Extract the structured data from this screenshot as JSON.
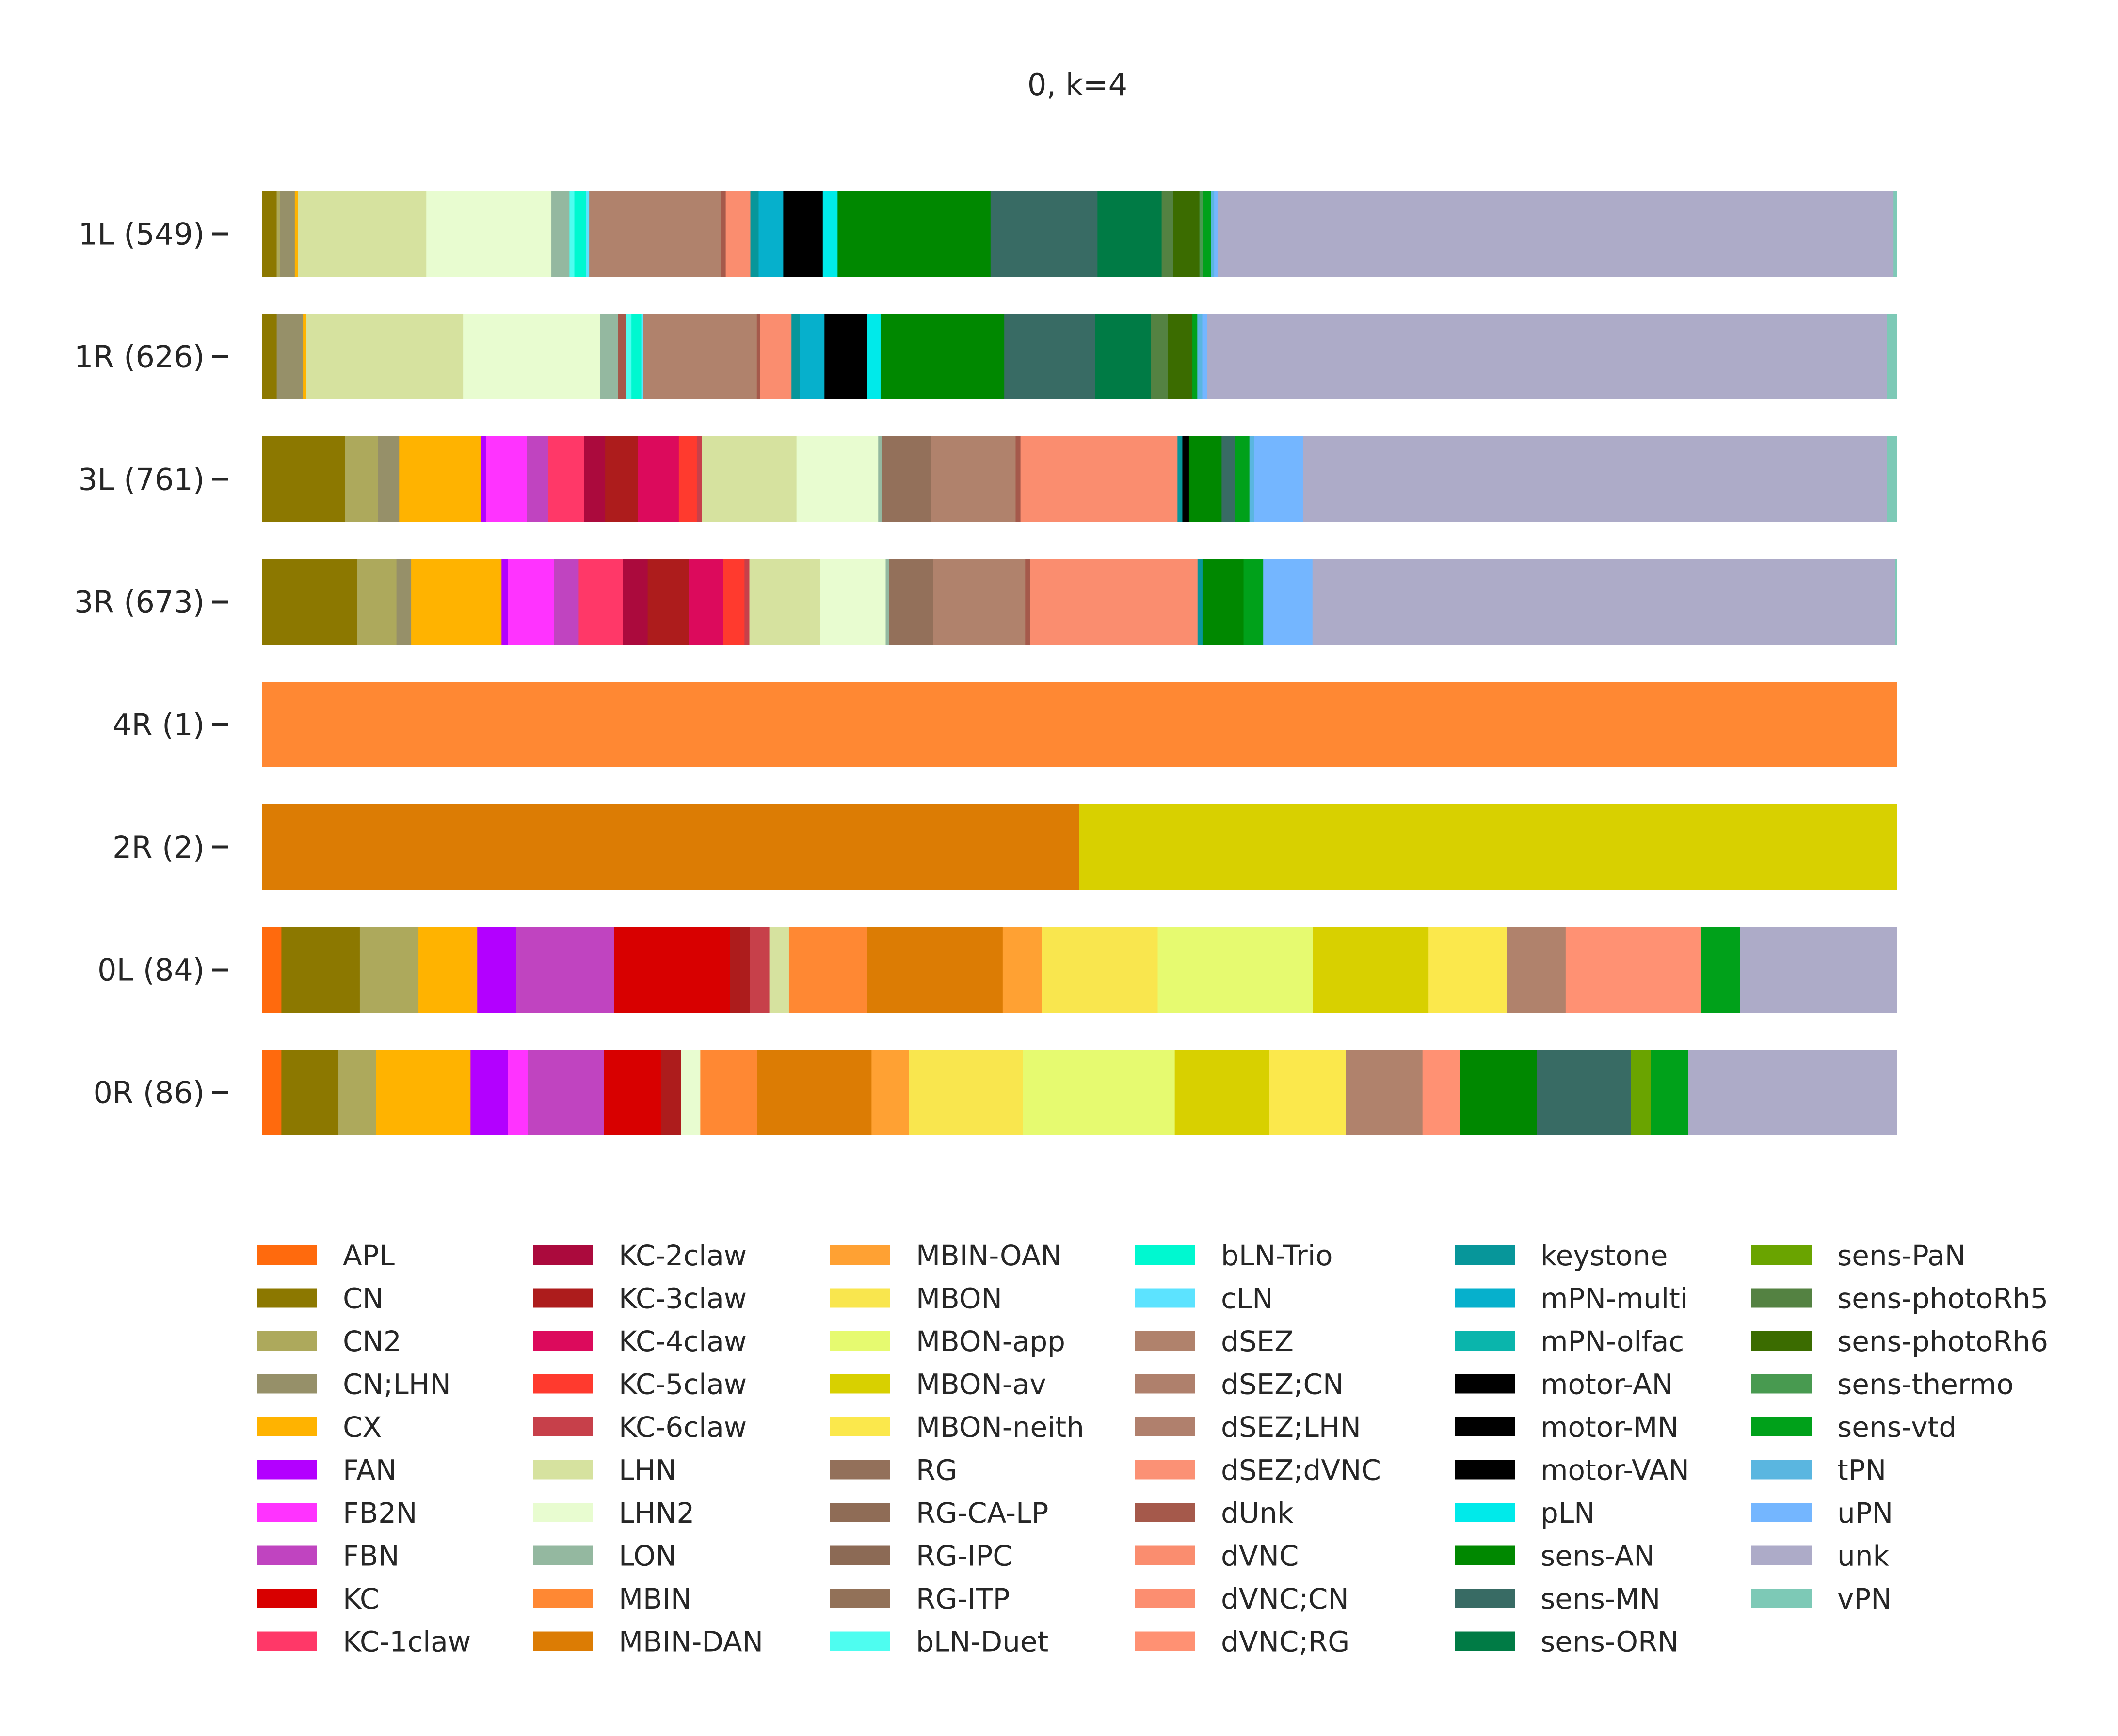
{
  "chart_data": {
    "type": "bar",
    "orientation": "horizontal",
    "stacked": true,
    "normalized": true,
    "title": "0, k=4",
    "xlabel": "",
    "ylabel": "",
    "xlim": [
      0,
      1
    ],
    "grid": false,
    "legend_position": "bottom",
    "rows": [
      {
        "label": "1L (549)",
        "segments": [
          [
            "CN",
            0.009
          ],
          [
            "CN2",
            0.002
          ],
          [
            "CN;LHN",
            0.009
          ],
          [
            "CX",
            0.002
          ],
          [
            "LHN",
            0.078
          ],
          [
            "LHN2",
            0.076
          ],
          [
            "LON",
            0.011
          ],
          [
            "bLN-Duet",
            0.003
          ],
          [
            "bLN-Trio",
            0.007
          ],
          [
            "cLN",
            0.002
          ],
          [
            "dSEZ",
            0.08
          ],
          [
            "dUnk",
            0.003
          ],
          [
            "dVNC",
            0.015
          ],
          [
            "keystone",
            0.005
          ],
          [
            "mPN-multi",
            0.015
          ],
          [
            "motor-AN",
            0.024
          ],
          [
            "pLN",
            0.009
          ],
          [
            "sens-AN",
            0.093
          ],
          [
            "sens-MN",
            0.065
          ],
          [
            "sens-ORN",
            0.039
          ],
          [
            "sens-photoRh5",
            0.007
          ],
          [
            "sens-photoRh6",
            0.016
          ],
          [
            "sens-thermo",
            0.002
          ],
          [
            "sens-vtd",
            0.005
          ],
          [
            "tPN",
            0.002
          ],
          [
            "uPN",
            0.002
          ],
          [
            "unk",
            0.411
          ],
          [
            "vPN",
            0.002
          ]
        ]
      },
      {
        "label": "1R (626)",
        "segments": [
          [
            "CN",
            0.009
          ],
          [
            "CN;LHN",
            0.016
          ],
          [
            "CX",
            0.002
          ],
          [
            "LHN",
            0.095
          ],
          [
            "LHN2",
            0.083
          ],
          [
            "LON",
            0.011
          ],
          [
            "dUnk",
            0.005
          ],
          [
            "bLN-Duet",
            0.003
          ],
          [
            "bLN-Trio",
            0.006
          ],
          [
            "cLN",
            0.001
          ],
          [
            "dSEZ",
            0.069
          ],
          [
            "dUnk",
            0.002
          ],
          [
            "dVNC",
            0.019
          ],
          [
            "keystone",
            0.005
          ],
          [
            "mPN-multi",
            0.015
          ],
          [
            "motor-AN",
            0.026
          ],
          [
            "pLN",
            0.008
          ],
          [
            "sens-AN",
            0.075
          ],
          [
            "sens-MN",
            0.055
          ],
          [
            "sens-ORN",
            0.034
          ],
          [
            "sens-photoRh5",
            0.01
          ],
          [
            "sens-photoRh6",
            0.015
          ],
          [
            "sens-vtd",
            0.003
          ],
          [
            "tPN",
            0.003
          ],
          [
            "uPN",
            0.003
          ],
          [
            "unk",
            0.412
          ],
          [
            "vPN",
            0.006
          ]
        ]
      },
      {
        "label": "3L (761)",
        "segments": [
          [
            "CN",
            0.051
          ],
          [
            "CN2",
            0.02
          ],
          [
            "CN;LHN",
            0.013
          ],
          [
            "CX",
            0.05
          ],
          [
            "FAN",
            0.003
          ],
          [
            "FB2N",
            0.025
          ],
          [
            "FBN",
            0.013
          ],
          [
            "KC-1claw",
            0.022
          ],
          [
            "KC-2claw",
            0.013
          ],
          [
            "KC-3claw",
            0.02
          ],
          [
            "KC-4claw",
            0.025
          ],
          [
            "KC-5claw",
            0.011
          ],
          [
            "KC-6claw",
            0.003
          ],
          [
            "LHN",
            0.058
          ],
          [
            "LHN2",
            0.05
          ],
          [
            "LON",
            0.002
          ],
          [
            "RG",
            0.03
          ],
          [
            "dSEZ",
            0.052
          ],
          [
            "dUnk",
            0.003
          ],
          [
            "dVNC",
            0.096
          ],
          [
            "keystone",
            0.003
          ],
          [
            "motor-AN",
            0.004
          ],
          [
            "sens-AN",
            0.02
          ],
          [
            "sens-MN",
            0.008
          ],
          [
            "sens-vtd",
            0.009
          ],
          [
            "tPN",
            0.003
          ],
          [
            "uPN",
            0.03
          ],
          [
            "unk",
            0.357
          ],
          [
            "vPN",
            0.006
          ]
        ]
      },
      {
        "label": "3R (673)",
        "segments": [
          [
            "CN",
            0.058
          ],
          [
            "CN2",
            0.024
          ],
          [
            "CN;LHN",
            0.009
          ],
          [
            "CX",
            0.055
          ],
          [
            "FAN",
            0.004
          ],
          [
            "FB2N",
            0.028
          ],
          [
            "FBN",
            0.015
          ],
          [
            "KC-1claw",
            0.027
          ],
          [
            "KC-2claw",
            0.015
          ],
          [
            "KC-3claw",
            0.025
          ],
          [
            "KC-4claw",
            0.021
          ],
          [
            "KC-5claw",
            0.013
          ],
          [
            "KC-6claw",
            0.003
          ],
          [
            "LHN",
            0.043
          ],
          [
            "LHN2",
            0.04
          ],
          [
            "LON",
            0.002
          ],
          [
            "RG",
            0.027
          ],
          [
            "dSEZ",
            0.056
          ],
          [
            "dUnk",
            0.003
          ],
          [
            "dVNC",
            0.102
          ],
          [
            "keystone",
            0.003
          ],
          [
            "sens-AN",
            0.025
          ],
          [
            "sens-vtd",
            0.012
          ],
          [
            "uPN",
            0.03
          ],
          [
            "unk",
            0.355
          ],
          [
            "vPN",
            0.001
          ]
        ]
      },
      {
        "label": "4R (1)",
        "segments": [
          [
            "MBIN",
            1.0
          ]
        ]
      },
      {
        "label": "2R (2)",
        "segments": [
          [
            "MBIN-DAN",
            0.5
          ],
          [
            "MBON-av",
            0.5
          ]
        ]
      },
      {
        "label": "0L (84)",
        "segments": [
          [
            "APL",
            0.012
          ],
          [
            "CN",
            0.048
          ],
          [
            "CN2",
            0.036
          ],
          [
            "CX",
            0.036
          ],
          [
            "FAN",
            0.024
          ],
          [
            "FBN",
            0.06
          ],
          [
            "KC",
            0.071
          ],
          [
            "KC-3claw",
            0.012
          ],
          [
            "KC-6claw",
            0.012
          ],
          [
            "LHN",
            0.012
          ],
          [
            "MBIN",
            0.048
          ],
          [
            "MBIN-DAN",
            0.083
          ],
          [
            "MBIN-OAN",
            0.024
          ],
          [
            "MBON",
            0.071
          ],
          [
            "MBON-app",
            0.095
          ],
          [
            "MBON-av",
            0.071
          ],
          [
            "MBON-neith",
            0.048
          ],
          [
            "dSEZ",
            0.036
          ],
          [
            "dVNC;RG",
            0.083
          ],
          [
            "sens-vtd",
            0.024
          ],
          [
            "unk",
            0.096
          ]
        ]
      },
      {
        "label": "0R (86)",
        "segments": [
          [
            "APL",
            0.012
          ],
          [
            "CN",
            0.035
          ],
          [
            "CN2",
            0.023
          ],
          [
            "CX",
            0.058
          ],
          [
            "FAN",
            0.023
          ],
          [
            "FB2N",
            0.012
          ],
          [
            "FBN",
            0.047
          ],
          [
            "KC",
            0.035
          ],
          [
            "KC-3claw",
            0.012
          ],
          [
            "LHN2",
            0.012
          ],
          [
            "MBIN",
            0.035
          ],
          [
            "MBIN-DAN",
            0.07
          ],
          [
            "MBIN-OAN",
            0.023
          ],
          [
            "MBON",
            0.07
          ],
          [
            "MBON-app",
            0.093
          ],
          [
            "MBON-av",
            0.058
          ],
          [
            "MBON-neith",
            0.047
          ],
          [
            "dSEZ",
            0.047
          ],
          [
            "dVNC;RG",
            0.023
          ],
          [
            "sens-AN",
            0.047
          ],
          [
            "sens-MN",
            0.058
          ],
          [
            "sens-PaN",
            0.012
          ],
          [
            "sens-vtd",
            0.023
          ],
          [
            "unk",
            0.128
          ]
        ]
      }
    ],
    "legend": [
      {
        "name": "APL",
        "color": "#ff6a0d"
      },
      {
        "name": "CN",
        "color": "#8c7800"
      },
      {
        "name": "CN2",
        "color": "#ada95c"
      },
      {
        "name": "CN;LHN",
        "color": "#969069"
      },
      {
        "name": "CX",
        "color": "#ffb300"
      },
      {
        "name": "FAN",
        "color": "#b300ff"
      },
      {
        "name": "FB2N",
        "color": "#ff33ff"
      },
      {
        "name": "FBN",
        "color": "#c044c0"
      },
      {
        "name": "KC",
        "color": "#d80000"
      },
      {
        "name": "KC-1claw",
        "color": "#ff3868"
      },
      {
        "name": "KC-2claw",
        "color": "#ab0a3d"
      },
      {
        "name": "KC-3claw",
        "color": "#ad1c1c"
      },
      {
        "name": "KC-4claw",
        "color": "#dc0a5c"
      },
      {
        "name": "KC-5claw",
        "color": "#ff3a2e"
      },
      {
        "name": "KC-6claw",
        "color": "#c7404a"
      },
      {
        "name": "LHN",
        "color": "#d6e29f"
      },
      {
        "name": "LHN2",
        "color": "#e8fcd0"
      },
      {
        "name": "LON",
        "color": "#94b8a0"
      },
      {
        "name": "MBIN",
        "color": "#ff8833"
      },
      {
        "name": "MBIN-DAN",
        "color": "#dc7c04"
      },
      {
        "name": "MBIN-OAN",
        "color": "#ffa133"
      },
      {
        "name": "MBON",
        "color": "#f9e64e"
      },
      {
        "name": "MBON-app",
        "color": "#e6fa70"
      },
      {
        "name": "MBON-av",
        "color": "#d8d000"
      },
      {
        "name": "MBON-neith",
        "color": "#fbe84c"
      },
      {
        "name": "RG",
        "color": "#93705a"
      },
      {
        "name": "RG-CA-LP",
        "color": "#8f6c56"
      },
      {
        "name": "RG-IPC",
        "color": "#8c6a55"
      },
      {
        "name": "RG-ITP",
        "color": "#927158"
      },
      {
        "name": "bLN-Duet",
        "color": "#4efdf0"
      },
      {
        "name": "bLN-Trio",
        "color": "#00f8d0"
      },
      {
        "name": "cLN",
        "color": "#5ce3ff"
      },
      {
        "name": "dSEZ",
        "color": "#b0826c"
      },
      {
        "name": "dSEZ;CN",
        "color": "#af806c"
      },
      {
        "name": "dSEZ;LHN",
        "color": "#b0806d"
      },
      {
        "name": "dSEZ;dVNC",
        "color": "#fb9175"
      },
      {
        "name": "dUnk",
        "color": "#a5594b"
      },
      {
        "name": "dVNC",
        "color": "#fa8d6f"
      },
      {
        "name": "dVNC;CN",
        "color": "#fc8e70"
      },
      {
        "name": "dVNC;RG",
        "color": "#ff9173"
      },
      {
        "name": "keystone",
        "color": "#07969a"
      },
      {
        "name": "mPN-multi",
        "color": "#06b0cc"
      },
      {
        "name": "mPN-olfac",
        "color": "#0ab5ac"
      },
      {
        "name": "motor-AN",
        "color": "#000000"
      },
      {
        "name": "motor-MN",
        "color": "#000000"
      },
      {
        "name": "motor-VAN",
        "color": "#000000"
      },
      {
        "name": "pLN",
        "color": "#00eaea"
      },
      {
        "name": "sens-AN",
        "color": "#008800"
      },
      {
        "name": "sens-MN",
        "color": "#386b64"
      },
      {
        "name": "sens-ORN",
        "color": "#007b45"
      },
      {
        "name": "sens-PaN",
        "color": "#6aa400"
      },
      {
        "name": "sens-photoRh5",
        "color": "#548242"
      },
      {
        "name": "sens-photoRh6",
        "color": "#3b6c00"
      },
      {
        "name": "sens-thermo",
        "color": "#489a50"
      },
      {
        "name": "sens-vtd",
        "color": "#00a11a"
      },
      {
        "name": "tPN",
        "color": "#5ab6e0"
      },
      {
        "name": "uPN",
        "color": "#74b6ff"
      },
      {
        "name": "unk",
        "color": "#adabc8"
      },
      {
        "name": "vPN",
        "color": "#7dc9b6"
      }
    ]
  }
}
